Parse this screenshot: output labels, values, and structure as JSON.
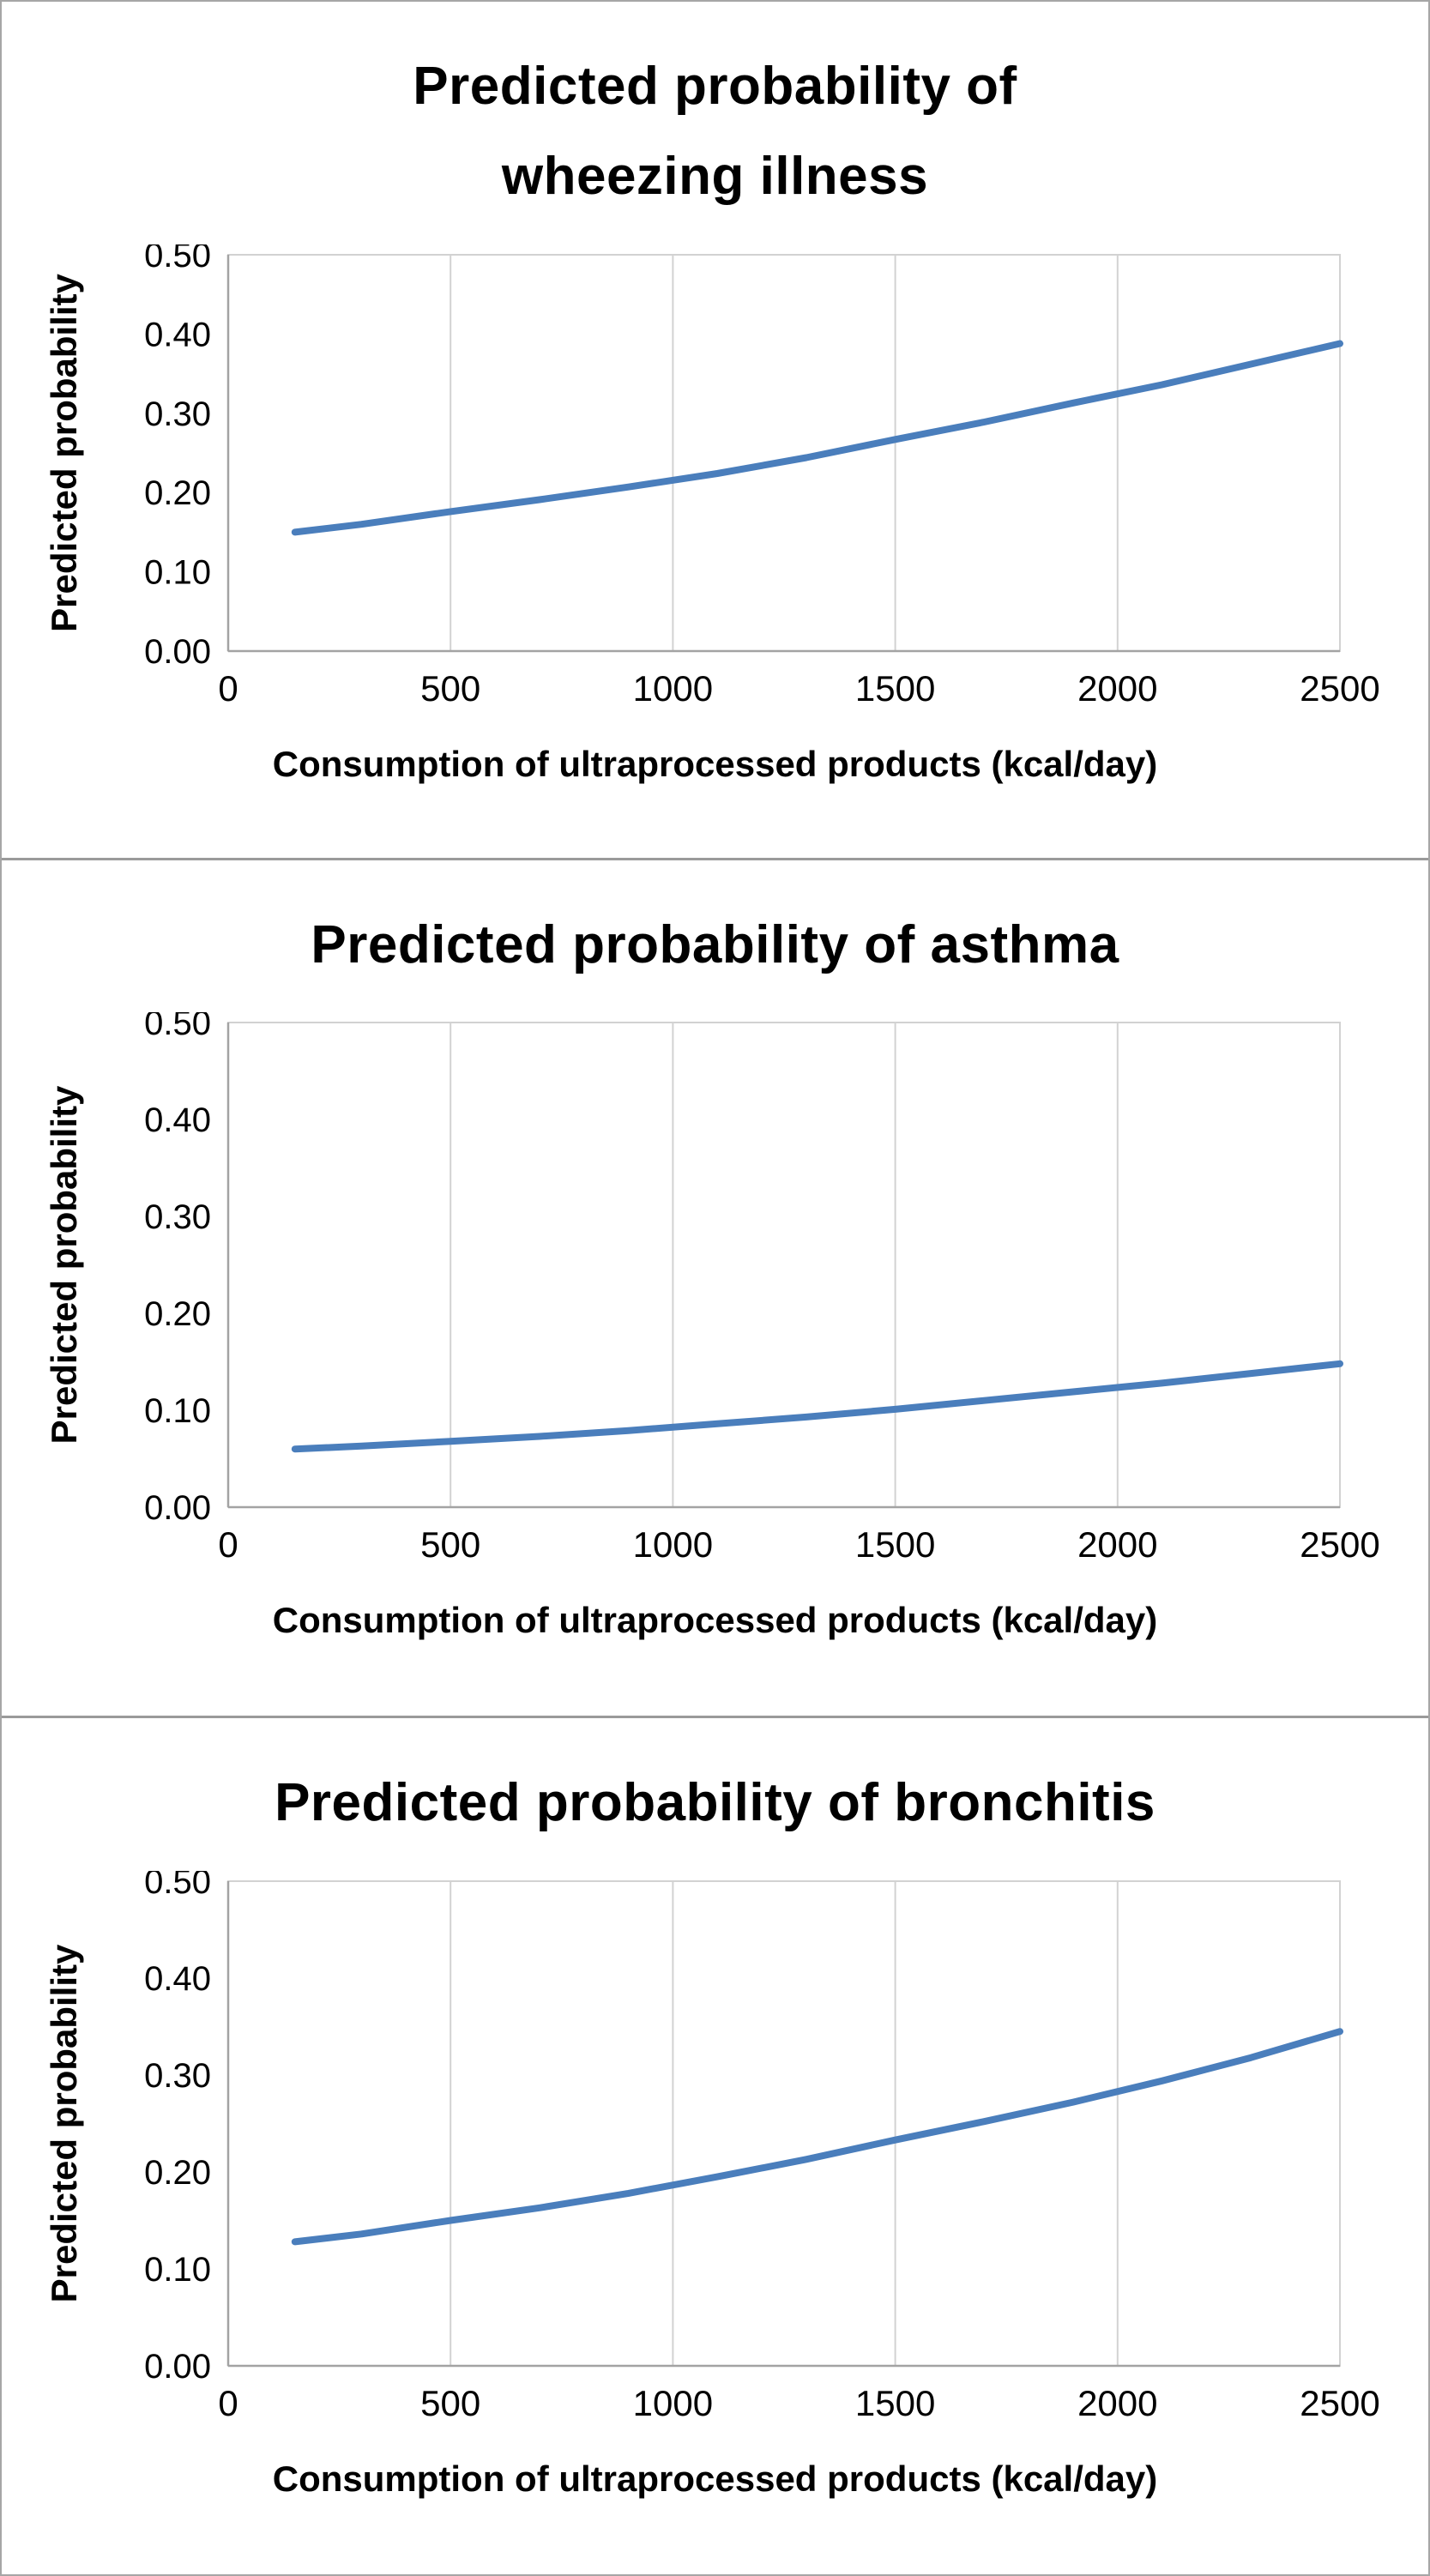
{
  "colors": {
    "line": "#4A7EBC",
    "grid": "#d2d2d2",
    "axis": "#a3a3a3",
    "text": "#000000"
  },
  "chart_data": [
    {
      "type": "line",
      "title": "Predicted probability of\nwheezing illness",
      "xlabel": "Consumption of ultraprocessed products (kcal/day)",
      "ylabel": "Predicted probability",
      "xlim": [
        0,
        2500
      ],
      "ylim": [
        0,
        0.5
      ],
      "x_ticks": [
        "0",
        "500",
        "1000",
        "1500",
        "2000",
        "2500"
      ],
      "y_ticks": [
        "0.00",
        "0.10",
        "0.20",
        "0.30",
        "0.40",
        "0.50"
      ],
      "grid": "vertical-only",
      "legend": "none",
      "series": [
        {
          "name": "predicted probability of wheezing illness",
          "x": [
            150,
            300,
            500,
            700,
            900,
            1100,
            1300,
            1500,
            1700,
            1900,
            2100,
            2300,
            2500
          ],
          "y": [
            0.15,
            0.16,
            0.176,
            0.191,
            0.207,
            0.224,
            0.244,
            0.267,
            0.289,
            0.313,
            0.336,
            0.362,
            0.388
          ]
        }
      ]
    },
    {
      "type": "line",
      "title": "Predicted probability of asthma",
      "xlabel": "Consumption of ultraprocessed products (kcal/day)",
      "ylabel": "Predicted probability",
      "xlim": [
        0,
        2500
      ],
      "ylim": [
        0,
        0.5
      ],
      "x_ticks": [
        "0",
        "500",
        "1000",
        "1500",
        "2000",
        "2500"
      ],
      "y_ticks": [
        "0.00",
        "0.10",
        "0.20",
        "0.30",
        "0.40",
        "0.50"
      ],
      "grid": "vertical-only",
      "legend": "none",
      "series": [
        {
          "name": "predicted probability of asthma",
          "x": [
            150,
            300,
            500,
            700,
            900,
            1100,
            1300,
            1500,
            1700,
            1900,
            2100,
            2300,
            2500
          ],
          "y": [
            0.06,
            0.063,
            0.068,
            0.073,
            0.079,
            0.086,
            0.093,
            0.101,
            0.11,
            0.119,
            0.128,
            0.138,
            0.148
          ]
        }
      ]
    },
    {
      "type": "line",
      "title": "Predicted probability of bronchitis",
      "xlabel": "Consumption of ultraprocessed products (kcal/day)",
      "ylabel": "Predicted probability",
      "xlim": [
        0,
        2500
      ],
      "ylim": [
        0,
        0.5
      ],
      "x_ticks": [
        "0",
        "500",
        "1000",
        "1500",
        "2000",
        "2500"
      ],
      "y_ticks": [
        "0.00",
        "0.10",
        "0.20",
        "0.30",
        "0.40",
        "0.50"
      ],
      "grid": "vertical-only",
      "legend": "none",
      "series": [
        {
          "name": "predicted probability of bronchitis",
          "x": [
            150,
            300,
            500,
            700,
            900,
            1100,
            1300,
            1500,
            1700,
            1900,
            2100,
            2300,
            2500
          ],
          "y": [
            0.128,
            0.136,
            0.15,
            0.163,
            0.178,
            0.195,
            0.213,
            0.233,
            0.252,
            0.272,
            0.294,
            0.318,
            0.345
          ]
        }
      ]
    }
  ]
}
